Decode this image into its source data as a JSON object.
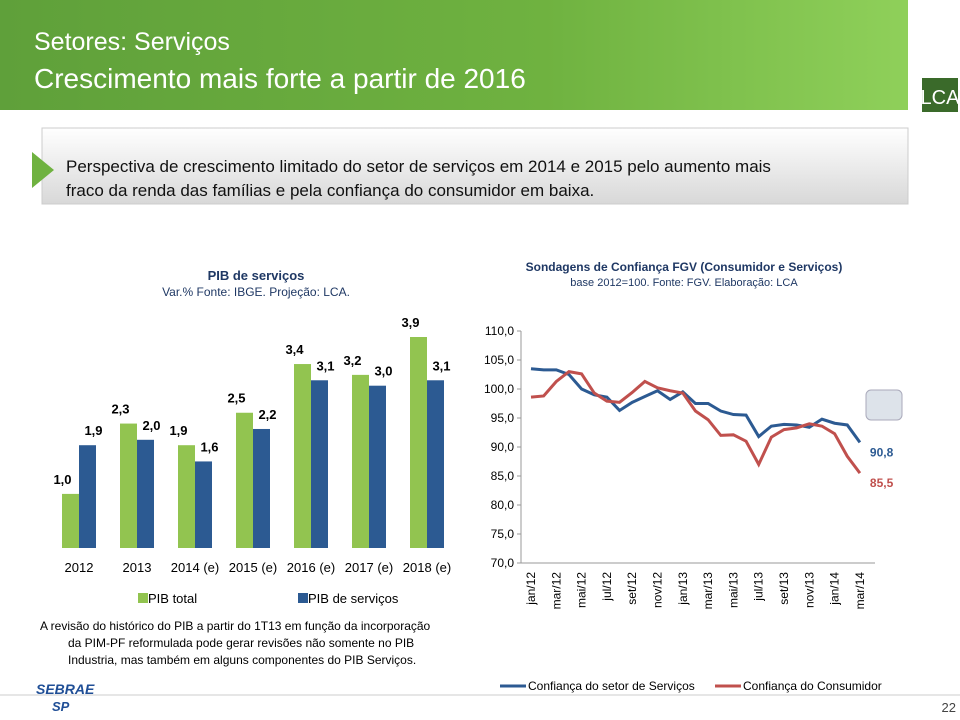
{
  "slide": {
    "kicker": "Setores: Serviços",
    "title": "Crescimento mais forte a partir de 2016",
    "logo": "LCA",
    "callout": [
      "Perspectiva de  crescimento limitado do setor de serviços em 2014 e 2015 pelo aumento mais",
      "fraco da renda das famílias e pela confiança do consumidor em baixa."
    ],
    "note": [
      "A revisão do histórico do PIB a partir do 1T13 em função da incorporação",
      "da PIM-PF reformulada pode gerar revisões não somente no PIB",
      "Industria, mas também em alguns componentes do PIB Serviços."
    ],
    "footer_logo": [
      "SEBRAE",
      "SP"
    ],
    "page": "22"
  },
  "chart_data": [
    {
      "type": "bar",
      "title": "PIB de serviços",
      "subtitle": "Var.% Fonte: IBGE. Projeção: LCA.",
      "categories": [
        "2012",
        "2013",
        "2014 (e)",
        "2015 (e)",
        "2016 (e)",
        "2017 (e)",
        "2018 (e)"
      ],
      "series": [
        {
          "name": "PIB total",
          "color": "#92c450",
          "values": [
            1.0,
            2.3,
            1.9,
            2.5,
            3.4,
            3.2,
            3.9
          ],
          "value_labels": [
            "1,0",
            "2,3",
            "1,9",
            "2,5",
            "3,4",
            "3,2",
            "3,9"
          ]
        },
        {
          "name": "PIB de serviços",
          "color": "#2c5a92",
          "values": [
            1.9,
            2.0,
            1.6,
            2.2,
            3.1,
            3.0,
            3.1
          ],
          "value_labels": [
            "1,9",
            "2,0",
            "1,6",
            "2,2",
            "3,1",
            "3,0",
            "3,1"
          ]
        }
      ]
    },
    {
      "type": "line",
      "title": "Sondagens de Confiança  FGV (Consumidor e Serviços)",
      "subtitle": "base 2012=100. Fonte: FGV. Elaboração: LCA",
      "categories": [
        "jan/12",
        null,
        "mar/12",
        null,
        "mai/12",
        null,
        "jul/12",
        null,
        "set/12",
        null,
        "nov/12",
        null,
        "jan/13",
        null,
        "mar/13",
        null,
        "mai/13",
        null,
        "jul/13",
        null,
        "set/13",
        null,
        "nov/13",
        null,
        "jan/14",
        null,
        "mar/14"
      ],
      "ylim": [
        70,
        110
      ],
      "yticks": [
        {
          "value": 70,
          "label": "70,0"
        },
        {
          "value": 75,
          "label": "75,0"
        },
        {
          "value": 80,
          "label": "80,0"
        },
        {
          "value": 85,
          "label": "85,0"
        },
        {
          "value": 90,
          "label": "90,0"
        },
        {
          "value": 95,
          "label": "95,0"
        },
        {
          "value": 100,
          "label": "100,0"
        },
        {
          "value": 105,
          "label": "105,0"
        },
        {
          "value": 110,
          "label": "110,0"
        }
      ],
      "series": [
        {
          "name": "Confiança do setor de Serviços",
          "color": "#2c5a92",
          "values": [
            103.5,
            103.3,
            103.3,
            102.5,
            100.0,
            99.0,
            98.6,
            96.3,
            97.7,
            98.7,
            99.7,
            98.2,
            99.5,
            97.5,
            97.5,
            96.2,
            95.6,
            95.5,
            91.8,
            93.6,
            93.9,
            93.8,
            93.4,
            94.8,
            94.1,
            93.8,
            90.8
          ],
          "value_labels": [
            null,
            null,
            null,
            null,
            null,
            null,
            null,
            null,
            null,
            null,
            null,
            null,
            null,
            null,
            null,
            null,
            null,
            null,
            null,
            null,
            null,
            null,
            null,
            null,
            null,
            null,
            "90,8"
          ]
        },
        {
          "name": "Confiança do Consumidor",
          "color": "#c0504d",
          "values": [
            98.6,
            98.8,
            101.3,
            103.0,
            102.6,
            99.3,
            97.9,
            97.7,
            99.4,
            101.3,
            100.2,
            99.7,
            99.3,
            96.2,
            94.7,
            92.0,
            92.1,
            91.0,
            87.0,
            91.7,
            93.0,
            93.3,
            94.0,
            93.6,
            92.3,
            88.4,
            85.5
          ],
          "value_labels": [
            null,
            null,
            null,
            null,
            null,
            null,
            null,
            null,
            null,
            null,
            null,
            null,
            null,
            null,
            null,
            null,
            null,
            null,
            null,
            null,
            null,
            null,
            null,
            null,
            null,
            null,
            "85,5"
          ]
        }
      ]
    }
  ]
}
